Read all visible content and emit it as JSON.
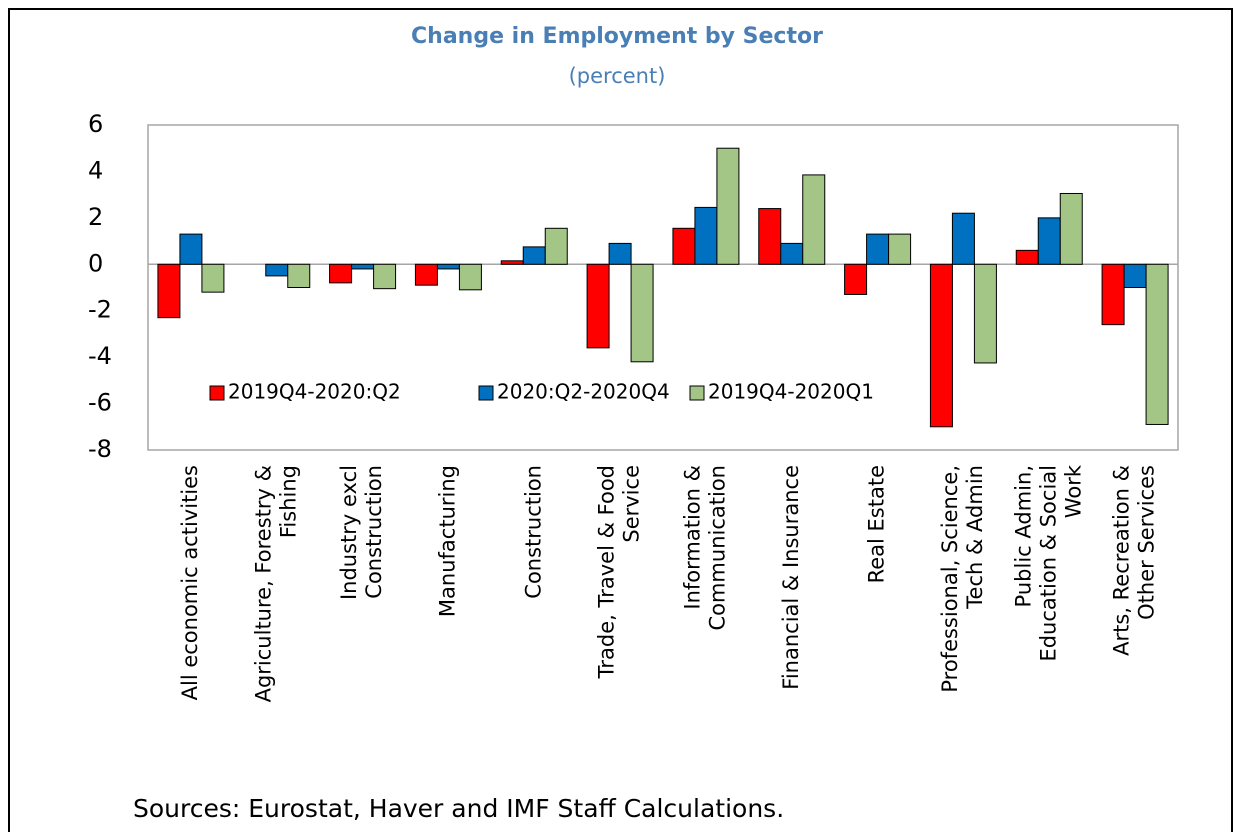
{
  "chart_data": {
    "type": "bar",
    "title": "Change in Employment by Sector",
    "subtitle": "(percent)",
    "source": "Sources: Eurostat, Haver and IMF Staff Calculations.",
    "categories": [
      "All economic activities",
      "Agriculture, Forestry & Fishing",
      "Industry excl Construction",
      "Manufacturing",
      "Construction",
      "Trade, Travel & Food Service",
      "Information & Communication",
      "Financial & Insurance",
      "Real Estate",
      "Professional, Science, Tech & Admin",
      "Public Admin, Education & Social Work",
      "Arts, Recreation & Other Services"
    ],
    "series": [
      {
        "name": "2019Q4-2020:Q2",
        "color": "#ff0000",
        "values": [
          -2.3,
          0,
          -0.8,
          -0.9,
          0.15,
          -3.6,
          1.55,
          2.4,
          -1.3,
          -7.0,
          0.6,
          -2.6
        ]
      },
      {
        "name": "2020:Q2-2020Q4",
        "color": "#0070c0",
        "values": [
          1.3,
          -0.5,
          -0.2,
          -0.2,
          0.75,
          0.9,
          2.45,
          0.9,
          1.3,
          2.2,
          2.0,
          -1.0
        ]
      },
      {
        "name": "2019Q4-2020Q1",
        "color": "#a3c585",
        "values": [
          -1.2,
          -1.0,
          -1.05,
          -1.1,
          1.55,
          -4.2,
          5.0,
          3.85,
          1.3,
          -4.25,
          3.05,
          -6.9
        ]
      }
    ],
    "ylim": [
      -8,
      6
    ],
    "yticks": [
      -8,
      -6,
      -4,
      -2,
      0,
      2,
      4,
      6
    ],
    "grid": false,
    "legend": "bottom-left"
  }
}
